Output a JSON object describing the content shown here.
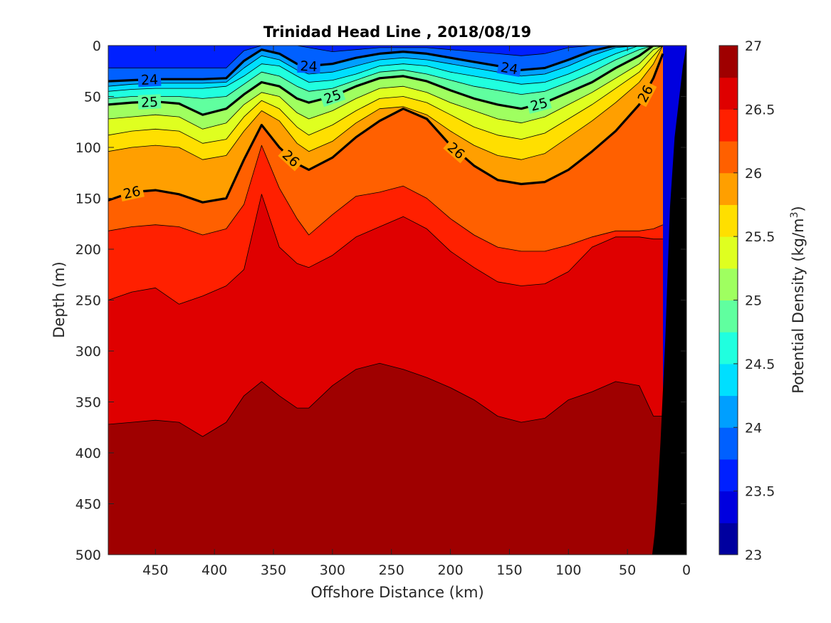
{
  "chart_data": {
    "type": "contour",
    "title": "Trinidad Head Line , 2018/08/19",
    "xlabel": "Offshore Distance (km)",
    "ylabel": "Depth (m)",
    "xlim": [
      490,
      0
    ],
    "ylim": [
      0,
      500
    ],
    "x_reversed": true,
    "y_reversed": true,
    "xticks": [
      450,
      400,
      350,
      300,
      250,
      200,
      150,
      100,
      50,
      0
    ],
    "yticks": [
      0,
      50,
      100,
      150,
      200,
      250,
      300,
      350,
      400,
      450,
      500
    ],
    "colorbar": {
      "label": "Potential Density (kg/m3)",
      "label_main": "Potential Density (kg/m",
      "label_sup": "3",
      "label_end": ")",
      "range": [
        23,
        27
      ],
      "ticks": [
        23,
        23.5,
        24,
        24.5,
        25,
        25.5,
        26,
        26.5,
        27
      ],
      "colormap": "jet",
      "levels": 16
    },
    "contour_levels": [
      23.25,
      23.5,
      23.75,
      24,
      24.25,
      24.5,
      24.75,
      25,
      25.25,
      25.5,
      25.75,
      26,
      26.25,
      26.5,
      26.75
    ],
    "labeled_contours": [
      24,
      25,
      26
    ],
    "contour_label_text": [
      "24",
      "24",
      "24",
      "25",
      "25",
      "25",
      "26",
      "26",
      "26",
      "26"
    ],
    "isopycnal_depths": {
      "x": [
        490,
        470,
        450,
        430,
        410,
        390,
        375,
        360,
        345,
        330,
        320,
        300,
        280,
        260,
        240,
        220,
        200,
        180,
        160,
        140,
        120,
        100,
        80,
        60,
        40,
        28,
        20
      ],
      "levels": [
        {
          "level": 23.5,
          "depth": [
            0,
            0,
            0,
            0,
            0,
            0,
            0,
            0,
            0,
            0,
            0,
            0,
            0,
            0,
            0,
            0,
            0,
            0,
            0,
            0,
            0,
            0,
            0,
            0,
            0,
            0,
            0
          ]
        },
        {
          "level": 23.75,
          "depth": [
            22,
            22,
            22,
            22,
            22,
            22,
            5,
            0,
            0,
            0,
            2,
            6,
            4,
            2,
            2,
            2,
            4,
            6,
            8,
            10,
            8,
            2,
            0,
            0,
            0,
            0,
            0
          ]
        },
        {
          "level": 24,
          "depth": [
            35,
            34,
            33,
            33,
            33,
            32,
            15,
            4,
            8,
            18,
            20,
            18,
            12,
            8,
            6,
            8,
            12,
            16,
            20,
            24,
            22,
            14,
            5,
            0,
            0,
            0,
            0
          ]
        },
        {
          "level": 24.25,
          "depth": [
            40,
            38,
            37,
            37,
            37,
            36,
            22,
            10,
            14,
            24,
            28,
            26,
            20,
            14,
            12,
            14,
            18,
            22,
            26,
            30,
            28,
            20,
            10,
            2,
            0,
            0,
            0
          ]
        },
        {
          "level": 24.5,
          "depth": [
            45,
            43,
            42,
            42,
            42,
            40,
            30,
            18,
            20,
            30,
            36,
            34,
            28,
            20,
            18,
            20,
            26,
            30,
            34,
            38,
            36,
            28,
            18,
            8,
            0,
            0,
            0
          ]
        },
        {
          "level": 24.75,
          "depth": [
            52,
            50,
            50,
            50,
            52,
            50,
            38,
            26,
            30,
            40,
            45,
            42,
            34,
            26,
            24,
            28,
            34,
            40,
            44,
            48,
            45,
            36,
            26,
            14,
            4,
            0,
            0
          ]
        },
        {
          "level": 25,
          "depth": [
            58,
            56,
            55,
            57,
            68,
            62,
            48,
            36,
            40,
            52,
            56,
            50,
            40,
            32,
            30,
            35,
            44,
            52,
            58,
            62,
            56,
            46,
            36,
            22,
            10,
            0,
            0
          ]
        },
        {
          "level": 25.25,
          "depth": [
            72,
            70,
            68,
            70,
            82,
            76,
            58,
            46,
            50,
            66,
            72,
            64,
            52,
            42,
            40,
            46,
            56,
            64,
            72,
            76,
            70,
            58,
            46,
            32,
            18,
            4,
            0
          ]
        },
        {
          "level": 25.5,
          "depth": [
            88,
            84,
            82,
            84,
            96,
            92,
            70,
            54,
            62,
            80,
            88,
            78,
            64,
            52,
            50,
            56,
            68,
            80,
            88,
            92,
            86,
            72,
            58,
            42,
            26,
            10,
            0
          ]
        },
        {
          "level": 25.75,
          "depth": [
            104,
            100,
            98,
            100,
            112,
            108,
            84,
            64,
            74,
            96,
            104,
            94,
            76,
            62,
            60,
            68,
            84,
            98,
            108,
            112,
            106,
            90,
            74,
            56,
            36,
            18,
            0
          ]
        },
        {
          "level": 26,
          "depth": [
            152,
            144,
            142,
            146,
            154,
            150,
            112,
            78,
            100,
            116,
            122,
            110,
            90,
            74,
            62,
            72,
            98,
            118,
            132,
            136,
            134,
            122,
            104,
            84,
            58,
            32,
            8
          ]
        },
        {
          "level": 26.25,
          "depth": [
            182,
            178,
            176,
            178,
            186,
            180,
            156,
            98,
            140,
            170,
            186,
            166,
            148,
            144,
            138,
            150,
            170,
            186,
            198,
            202,
            202,
            196,
            188,
            182,
            182,
            180,
            176
          ]
        },
        {
          "level": 26.5,
          "depth": [
            250,
            242,
            238,
            254,
            246,
            236,
            220,
            146,
            198,
            214,
            218,
            206,
            188,
            178,
            168,
            180,
            202,
            218,
            232,
            236,
            234,
            222,
            198,
            188,
            188,
            190,
            190
          ]
        },
        {
          "level": 26.75,
          "depth": [
            372,
            370,
            368,
            370,
            384,
            370,
            344,
            330,
            344,
            356,
            356,
            334,
            318,
            312,
            318,
            326,
            336,
            348,
            364,
            370,
            366,
            348,
            340,
            330,
            334,
            364,
            364
          ]
        }
      ]
    },
    "bathymetry": {
      "x": [
        0,
        3,
        7,
        10,
        14,
        18,
        22,
        25,
        27,
        29
      ],
      "bottom_depth": [
        0,
        20,
        60,
        90,
        160,
        290,
        390,
        450,
        480,
        500
      ]
    }
  }
}
